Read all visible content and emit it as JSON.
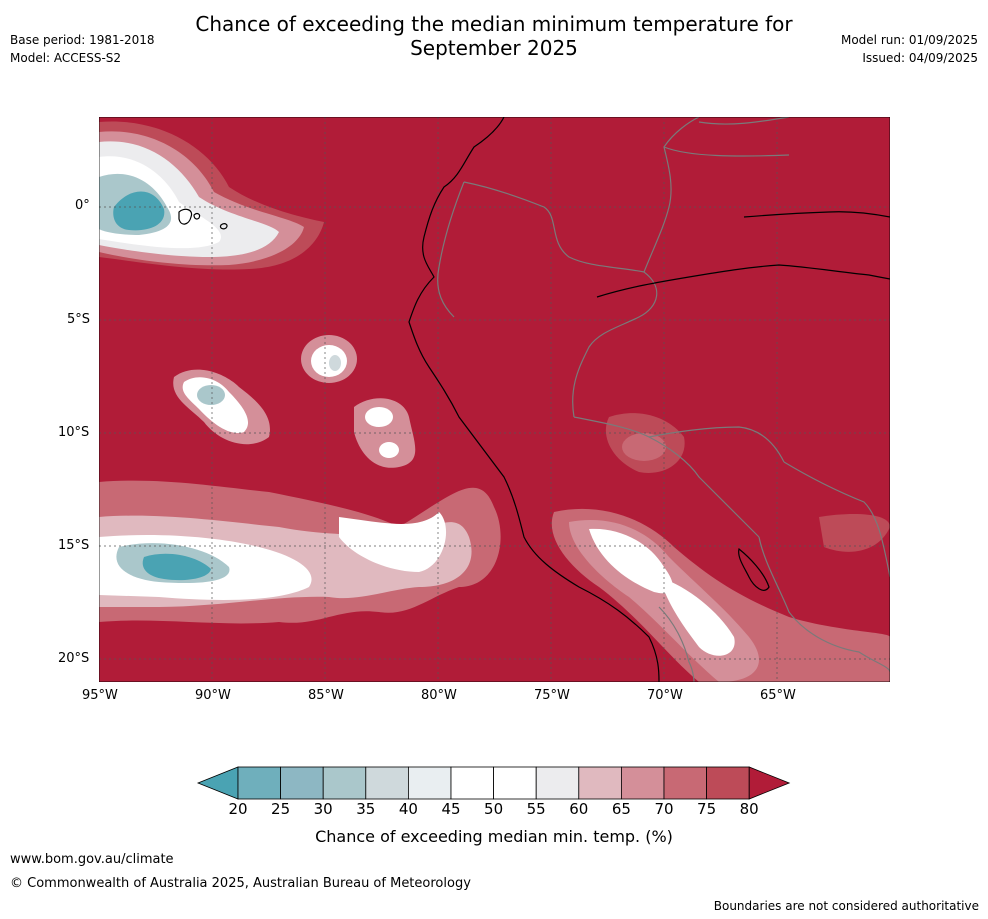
{
  "header": {
    "base_period": "Base period: 1981-2018",
    "model": "Model: ACCESS-S2",
    "title_line1": "Chance of exceeding the median minimum temperature for",
    "title_line2": "September 2025",
    "model_run": "Model run: 01/09/2025",
    "issued": "Issued: 04/09/2025"
  },
  "map": {
    "lat_labels": [
      "0°",
      "5°S",
      "10°S",
      "15°S",
      "20°S"
    ],
    "lon_labels": [
      "95°W",
      "90°W",
      "85°W",
      "80°W",
      "75°W",
      "70°W",
      "65°W"
    ],
    "background_color": "#b11c38"
  },
  "colorbar": {
    "ticks": [
      "20",
      "25",
      "30",
      "35",
      "40",
      "45",
      "50",
      "55",
      "60",
      "65",
      "70",
      "75",
      "80"
    ],
    "colors": [
      "#4aa3b3",
      "#6fafbc",
      "#8db7c3",
      "#aac7cb",
      "#cfd9dc",
      "#e9eef1",
      "#ffffff",
      "#ffffff",
      "#ececee",
      "#e0b9bf",
      "#d48f99",
      "#c86974",
      "#bd4b58",
      "#b11c38"
    ],
    "label": "Chance of exceeding median min. temp. (%)"
  },
  "footer": {
    "url": "www.bom.gov.au/climate",
    "copyright": "© Commonwealth of Australia 2025, Australian Bureau of Meteorology",
    "disclaimer": "Boundaries are not considered authoritative"
  }
}
